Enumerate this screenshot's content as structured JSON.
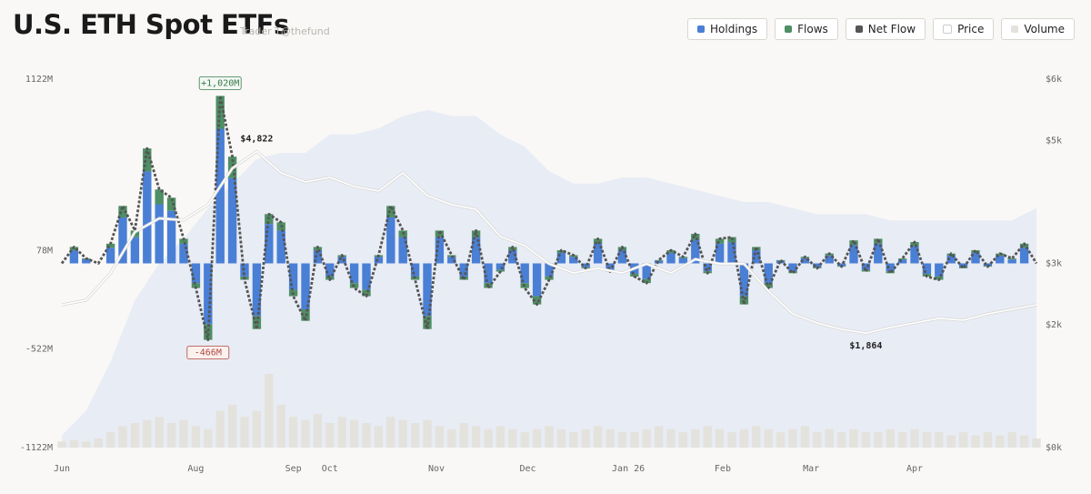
{
  "chart_data": {
    "type": "bar",
    "title": "U.S. ETH Spot ETFs",
    "subtitle": "Trader T@thefund",
    "x": [
      0,
      4,
      8,
      12,
      16,
      20,
      24,
      28,
      32,
      36,
      40,
      44,
      48,
      52,
      56,
      60,
      64,
      68,
      72,
      76,
      80,
      84,
      88,
      92,
      96,
      100,
      104,
      108,
      112,
      116,
      120,
      124,
      128,
      132,
      136,
      140,
      144,
      148,
      152,
      156,
      160,
      164,
      168,
      172,
      176,
      180,
      184,
      188,
      192,
      196,
      200,
      204,
      208,
      212,
      216,
      220,
      224,
      228,
      232,
      236,
      240,
      244,
      248,
      252,
      256,
      260,
      264,
      268,
      272,
      276,
      280,
      284,
      288,
      292,
      296,
      300,
      304,
      308,
      312,
      316,
      320
    ],
    "xlim": [
      0,
      320
    ],
    "xticks": [
      {
        "value": 0,
        "label": "Jun"
      },
      {
        "value": 44,
        "label": "Aug"
      },
      {
        "value": 76,
        "label": "Sep"
      },
      {
        "value": 88,
        "label": "Oct"
      },
      {
        "value": 123,
        "label": "Nov"
      },
      {
        "value": 153,
        "label": "Dec"
      },
      {
        "value": 186,
        "label": "Jan 26"
      },
      {
        "value": 217,
        "label": "Feb"
      },
      {
        "value": 246,
        "label": "Mar"
      },
      {
        "value": 280,
        "label": "Apr"
      }
    ],
    "ylim": [
      -1122,
      1122
    ],
    "yticks": [
      {
        "value": 1122,
        "label": "1122M"
      },
      {
        "value": 78,
        "label": "78M"
      },
      {
        "value": -522,
        "label": "-522M"
      },
      {
        "value": -1122,
        "label": "-1122M"
      }
    ],
    "y2lim": [
      0,
      6000
    ],
    "y2ticks": [
      {
        "value": 6000,
        "label": "$6k"
      },
      {
        "value": 5000,
        "label": "$5k"
      },
      {
        "value": 3000,
        "label": "$3k"
      },
      {
        "value": 2000,
        "label": "$2k"
      },
      {
        "value": 0,
        "label": "$0k"
      }
    ],
    "background_area": {
      "color": "#e8ecf4",
      "axis": "y2",
      "x": [
        0,
        8,
        16,
        24,
        32,
        40,
        48,
        56,
        64,
        72,
        80,
        88,
        96,
        104,
        112,
        120,
        128,
        136,
        144,
        152,
        160,
        168,
        176,
        184,
        192,
        200,
        208,
        216,
        224,
        232,
        240,
        248,
        256,
        264,
        272,
        280,
        288,
        296,
        304,
        312,
        320
      ],
      "values": [
        200,
        600,
        1400,
        2400,
        3000,
        3400,
        3900,
        4300,
        4700,
        4800,
        4800,
        5100,
        5100,
        5200,
        5400,
        5500,
        5400,
        5400,
        5100,
        4900,
        4500,
        4300,
        4300,
        4400,
        4400,
        4300,
        4200,
        4100,
        4000,
        4000,
        3900,
        3800,
        3800,
        3800,
        3700,
        3700,
        3700,
        3700,
        3700,
        3700,
        3900
      ]
    },
    "series": [
      {
        "name": "Holdings",
        "color": "#4a7fd6",
        "kind": "bar",
        "values": [
          0,
          80,
          25,
          0,
          95,
          280,
          160,
          560,
          360,
          320,
          120,
          -120,
          -370,
          820,
          520,
          -80,
          -320,
          240,
          200,
          -160,
          -280,
          80,
          -80,
          40,
          -120,
          -160,
          40,
          280,
          160,
          -80,
          -320,
          160,
          40,
          -80,
          160,
          -120,
          -40,
          80,
          -120,
          -200,
          -80,
          64,
          40,
          -24,
          120,
          -40,
          80,
          -64,
          -96,
          16,
          64,
          32,
          144,
          -48,
          120,
          128,
          -200,
          80,
          -120,
          16,
          -48,
          32,
          -24,
          48,
          -16,
          112,
          -40,
          120,
          -48,
          24,
          104,
          -64,
          -80,
          48,
          -24,
          64,
          -16,
          48,
          24,
          96,
          0
        ]
      },
      {
        "name": "Flows",
        "color": "#4e8f64",
        "kind": "bar",
        "values": [
          0,
          20,
          5,
          0,
          25,
          70,
          40,
          140,
          90,
          80,
          30,
          -30,
          -96,
          200,
          130,
          -20,
          -80,
          60,
          50,
          -40,
          -70,
          20,
          -20,
          10,
          -30,
          -40,
          10,
          70,
          40,
          -20,
          -80,
          40,
          10,
          -20,
          40,
          -30,
          -10,
          20,
          -30,
          -50,
          -20,
          16,
          10,
          -6,
          30,
          -10,
          20,
          -16,
          -24,
          4,
          16,
          8,
          36,
          -12,
          30,
          32,
          -50,
          20,
          -30,
          4,
          -12,
          8,
          -6,
          12,
          -4,
          28,
          -10,
          30,
          -12,
          6,
          26,
          -16,
          -20,
          12,
          -6,
          16,
          -4,
          12,
          6,
          24,
          0
        ]
      },
      {
        "name": "Net Flow",
        "color": "#555555",
        "kind": "line",
        "values": [
          0,
          100,
          30,
          0,
          120,
          350,
          200,
          700,
          450,
          400,
          150,
          -150,
          -466,
          1020,
          650,
          -100,
          -400,
          300,
          250,
          -200,
          -350,
          100,
          -100,
          50,
          -150,
          -200,
          50,
          350,
          200,
          -100,
          -400,
          200,
          50,
          -100,
          200,
          -150,
          -50,
          100,
          -150,
          -250,
          -100,
          80,
          50,
          -30,
          150,
          -50,
          100,
          -80,
          -120,
          20,
          80,
          40,
          180,
          -60,
          150,
          160,
          -250,
          100,
          -150,
          20,
          -60,
          40,
          -30,
          60,
          -20,
          140,
          -50,
          150,
          -60,
          30,
          130,
          -80,
          -100,
          60,
          -30,
          80,
          -20,
          60,
          30,
          120,
          0
        ],
        "value_labels": [
          null,
          null,
          null,
          null,
          null,
          null,
          null,
          null,
          null,
          null,
          null,
          null,
          "-466M",
          "+1,020M",
          null,
          null,
          null,
          null,
          null,
          null,
          null,
          null,
          null,
          null,
          null,
          null,
          null,
          null,
          null,
          null,
          null,
          null,
          null,
          null,
          null,
          null,
          null,
          null,
          null,
          null,
          null,
          null,
          null,
          null,
          null,
          null,
          null,
          null,
          null,
          null,
          null,
          null,
          null,
          null,
          null,
          null,
          null,
          null,
          null,
          null,
          null,
          null,
          null,
          null,
          null,
          null,
          null,
          null,
          null,
          null,
          null,
          null,
          null,
          null,
          null,
          null,
          null,
          null,
          null,
          null,
          null
        ]
      },
      {
        "name": "Price",
        "color": "#ffffff",
        "kind": "line",
        "axis": "y2",
        "x": [
          0,
          8,
          16,
          24,
          32,
          40,
          48,
          56,
          64,
          72,
          80,
          88,
          96,
          104,
          112,
          120,
          128,
          136,
          144,
          152,
          160,
          168,
          176,
          184,
          192,
          200,
          208,
          216,
          224,
          232,
          240,
          248,
          256,
          264,
          272,
          280,
          288,
          296,
          304,
          312,
          320
        ],
        "values": [
          2326,
          2400,
          2844,
          3511,
          3733,
          3704,
          3956,
          4548,
          4822,
          4474,
          4326,
          4400,
          4252,
          4178,
          4474,
          4104,
          3956,
          3881,
          3437,
          3289,
          2993,
          2844,
          2919,
          2844,
          2993,
          2844,
          3067,
          2993,
          2993,
          2548,
          2178,
          2030,
          1926,
          1864,
          1956,
          2030,
          2104,
          2074,
          2178,
          2252,
          2326
        ],
        "value_labels": [
          null,
          null,
          null,
          null,
          null,
          null,
          null,
          null,
          "$4,822",
          null,
          null,
          null,
          null,
          null,
          null,
          null,
          null,
          null,
          null,
          null,
          null,
          null,
          null,
          null,
          null,
          null,
          null,
          null,
          null,
          null,
          null,
          null,
          null,
          "$1,864",
          null,
          null,
          null,
          null,
          null,
          null,
          null
        ]
      },
      {
        "name": "Volume",
        "color": "#e4e2dc",
        "kind": "bar",
        "axis": "y2",
        "values": [
          100,
          120,
          100,
          150,
          250,
          350,
          400,
          450,
          500,
          400,
          450,
          350,
          300,
          600,
          700,
          500,
          600,
          1200,
          700,
          500,
          450,
          550,
          400,
          500,
          450,
          400,
          350,
          500,
          450,
          400,
          450,
          350,
          300,
          400,
          350,
          300,
          350,
          300,
          250,
          300,
          350,
          300,
          250,
          300,
          350,
          300,
          250,
          250,
          300,
          350,
          300,
          250,
          300,
          350,
          300,
          250,
          300,
          350,
          300,
          250,
          300,
          350,
          250,
          300,
          250,
          300,
          250,
          250,
          300,
          250,
          300,
          250,
          250,
          200,
          250,
          200,
          250,
          200,
          250,
          200,
          150
        ]
      }
    ]
  }
}
